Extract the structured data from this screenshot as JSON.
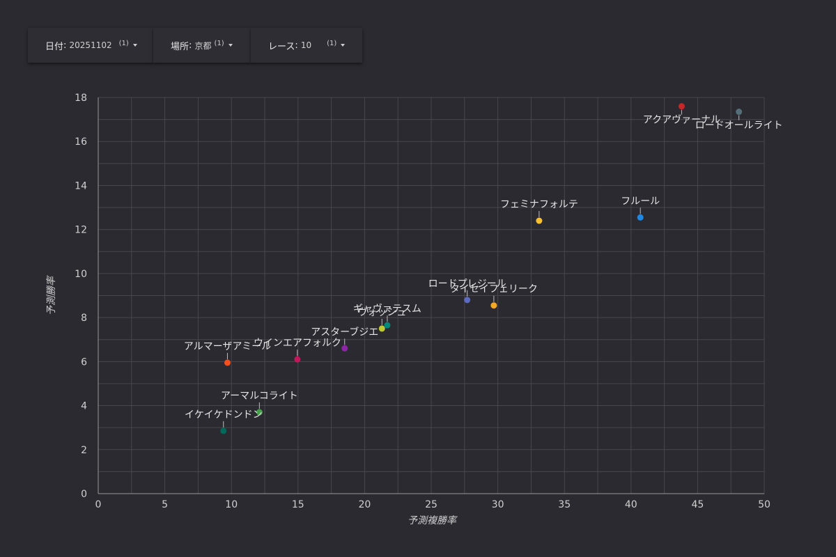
{
  "filters": [
    {
      "label": "日付",
      "value": "20251102",
      "count": "(1)"
    },
    {
      "label": "場所",
      "value": "京都",
      "count": "(1)"
    },
    {
      "label": "レース",
      "value": "10",
      "count": "(1)"
    }
  ],
  "chart_data": {
    "type": "scatter",
    "title": "",
    "xlabel": "予測複勝率",
    "ylabel": "予測勝率",
    "xlim": [
      0,
      50
    ],
    "ylim": [
      0,
      18
    ],
    "x_ticks": [
      0,
      5,
      10,
      15,
      20,
      25,
      30,
      35,
      40,
      45,
      50
    ],
    "y_ticks": [
      0,
      2,
      4,
      6,
      8,
      10,
      12,
      14,
      16,
      18
    ],
    "grid": true,
    "points": [
      {
        "label": "アクアヴァーナル",
        "x": 43.8,
        "y": 17.6,
        "color": "#c62828"
      },
      {
        "label": "ロードオールライト",
        "x": 48.1,
        "y": 17.35,
        "color": "#546e7a"
      },
      {
        "label": "フルール",
        "x": 40.7,
        "y": 12.55,
        "color": "#1e88e5"
      },
      {
        "label": "フェミナフォルテ",
        "x": 33.1,
        "y": 12.4,
        "color": "#fbc02d"
      },
      {
        "label": "ロードプレジール",
        "x": 27.7,
        "y": 8.8,
        "color": "#5c6bc0"
      },
      {
        "label": "タイセイフェリーク",
        "x": 29.7,
        "y": 8.55,
        "color": "#f9a825"
      },
      {
        "label": "ギャヴァテスム",
        "x": 21.7,
        "y": 7.65,
        "color": "#00897b"
      },
      {
        "label": "ウォッシュ",
        "x": 21.3,
        "y": 7.5,
        "color": "#c0ca33"
      },
      {
        "label": "アスターブジエ",
        "x": 18.5,
        "y": 6.6,
        "color": "#8e24aa"
      },
      {
        "label": "ウインエアフォルク",
        "x": 14.95,
        "y": 6.1,
        "color": "#c2185b"
      },
      {
        "label": "アルマーザアミール",
        "x": 9.7,
        "y": 5.95,
        "color": "#f4511e"
      },
      {
        "label": "アーマルコライト",
        "x": 12.1,
        "y": 3.7,
        "color": "#43a047"
      },
      {
        "label": "イケイケドンドン",
        "x": 9.4,
        "y": 2.85,
        "color": "#00695c"
      }
    ]
  }
}
